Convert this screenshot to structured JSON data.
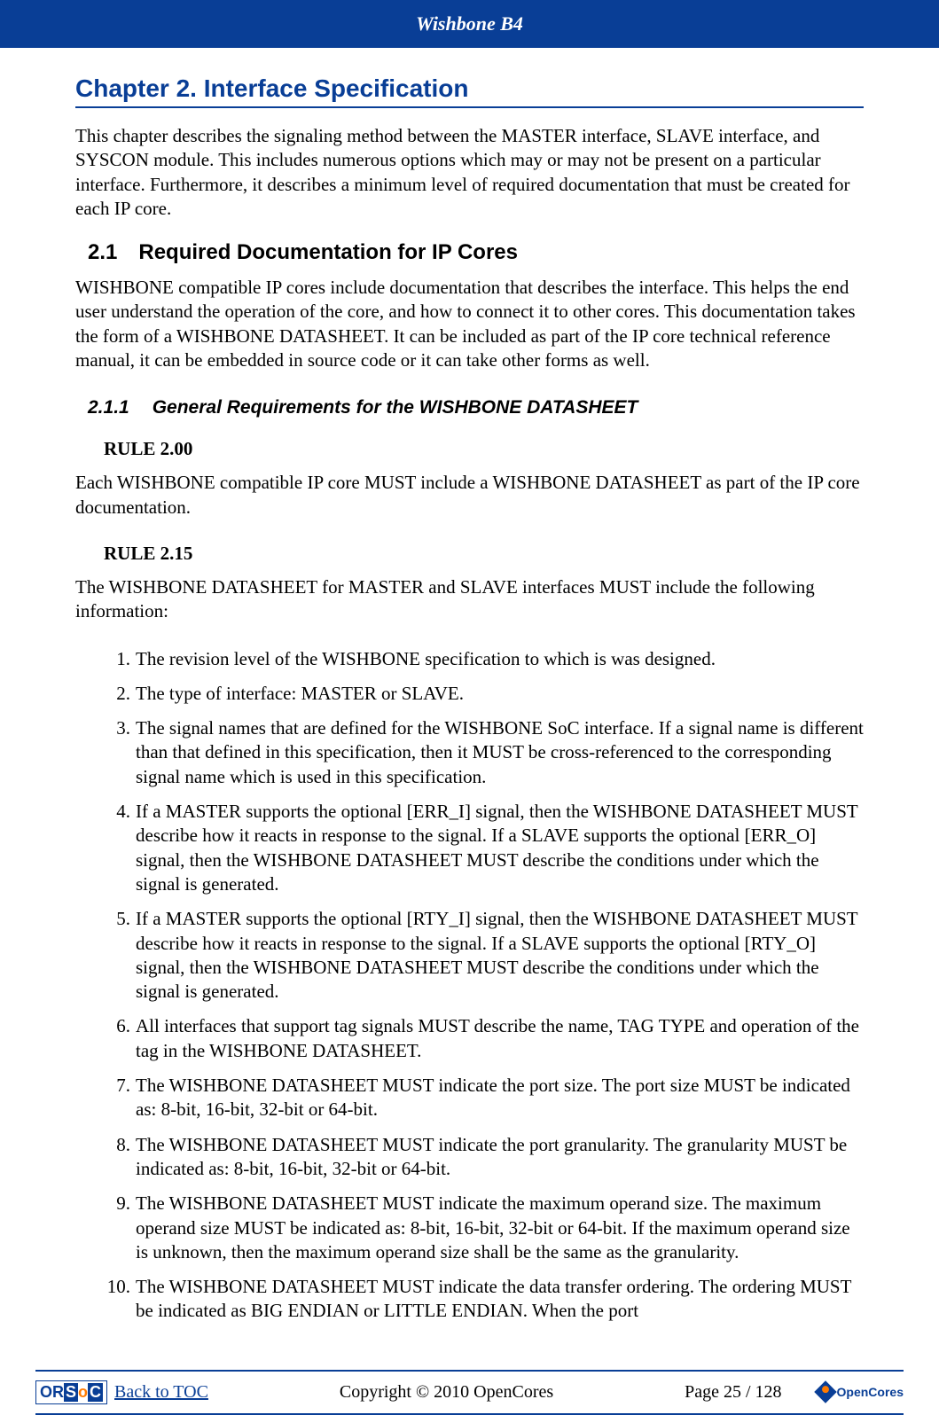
{
  "header": {
    "title": "Wishbone B4"
  },
  "chapter": {
    "title": "Chapter 2.  Interface Specification",
    "intro": "This chapter describes the signaling method between the MASTER interface, SLAVE interface, and SYSCON module.  This includes numerous options which may or may not be present on a particular interface.  Furthermore, it describes a minimum level of required documentation that must be created for each IP core."
  },
  "section": {
    "num": "2.1",
    "title": "Required Documentation for IP Cores",
    "para": "WISHBONE compatible IP cores include documentation that describes the interface.   This helps the end user understand the operation of the core, and how to connect it to other cores.  This documentation takes the form of a WISHBONE DATASHEET.  It can be included as part of the IP core technical reference manual, it can be embedded in source code or it can take other forms as well."
  },
  "subsection": {
    "num": "2.1.1",
    "title": "General Requirements for the WISHBONE DATASHEET"
  },
  "rules": {
    "r1": {
      "label": "RULE 2.00",
      "text": "Each WISHBONE compatible IP core MUST include a WISHBONE DATASHEET as part of the IP core documentation."
    },
    "r2": {
      "label": "RULE 2.15",
      "text": "The WISHBONE DATASHEET for MASTER and SLAVE interfaces MUST include the following information:"
    }
  },
  "list": {
    "i1": "The revision level of the WISHBONE specification to which is was designed.",
    "i2": "The type of interface: MASTER or SLAVE.",
    "i3": "The signal names that are defined for the WISHBONE SoC interface.  If a signal name is different than that defined in this specification, then it MUST be cross-referenced to the corresponding signal name which is used in this specification.",
    "i4": "If a MASTER supports the optional [ERR_I] signal, then the WISHBONE DATASHEET MUST describe how it reacts in response to the signal.  If a SLAVE supports the optional [ERR_O] signal, then the WISHBONE DATASHEET MUST describe the conditions under which the signal is generated.",
    "i5": "If a MASTER supports the optional [RTY_I] signal, then the WISHBONE DATASHEET MUST describe how it reacts in response to the signal.  If a SLAVE supports the optional [RTY_O] signal, then the WISHBONE DATASHEET MUST describe the conditions under which the signal is generated.",
    "i6": "All interfaces that support tag signals MUST describe the name, TAG TYPE and operation of the tag in the WISHBONE DATASHEET.",
    "i7": "The WISHBONE DATASHEET MUST indicate the port size.  The port size MUST be indicated as: 8-bit, 16-bit, 32-bit or 64-bit.",
    "i8": "The WISHBONE DATASHEET MUST indicate the port granularity.  The granularity MUST be indicated as: 8-bit, 16-bit, 32-bit or 64-bit.",
    "i9": "The WISHBONE DATASHEET MUST indicate the maximum operand size.  The maximum operand size MUST be indicated as: 8-bit, 16-bit, 32-bit or 64-bit.  If the maximum operand size is unknown, then the maximum operand size shall be the same as the granularity.",
    "i10": "The WISHBONE DATASHEET MUST indicate the data transfer ordering.  The ordering MUST be indicated as BIG ENDIAN or LITTLE ENDIAN.  When the port"
  },
  "footer": {
    "back_toc": "Back to TOC",
    "copyright": "Copyright © 2010 OpenCores",
    "page": "Page 25 / 128",
    "orsoc": {
      "or": "OR",
      "s": "S",
      "o": "o",
      "c": "C"
    },
    "opencores_label": "OpenCores"
  },
  "colors": {
    "primary": "#093e96",
    "accent": "#ff7a00",
    "bg": "#ffffff",
    "text": "#000000"
  }
}
